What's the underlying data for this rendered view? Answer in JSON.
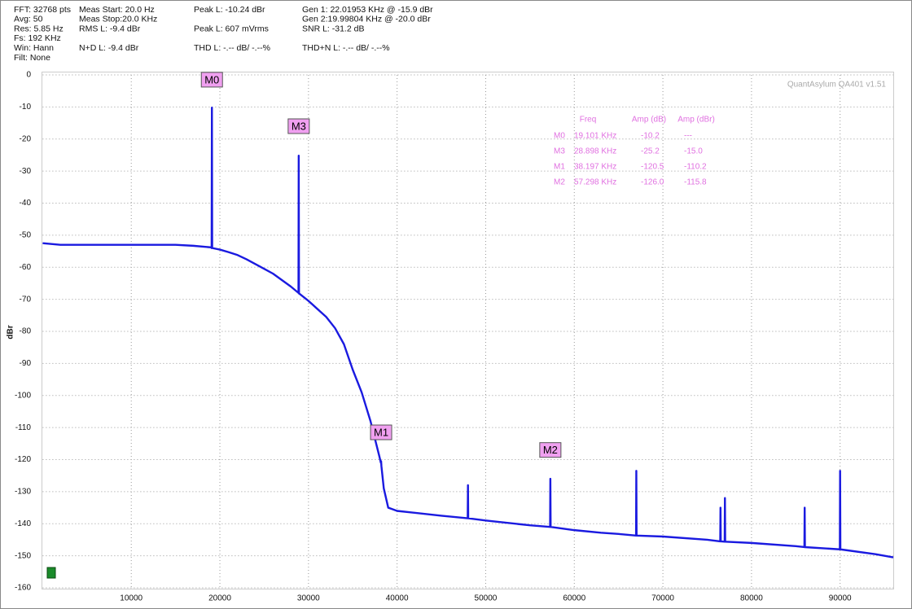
{
  "chart_data": {
    "type": "line",
    "header": [
      [
        "FFT: 32768 pts",
        "Avg: 50",
        "Res: 5.85 Hz",
        "Fs: 192 KHz",
        "Win: Hann",
        "Filt: None"
      ],
      [
        "Meas Start: 20.0 Hz",
        "Meas Stop:20.0 KHz",
        "RMS L: -9.4 dBr",
        null,
        "N+D L: -9.4 dBr"
      ],
      [
        "Peak L: -10.24 dBr",
        null,
        "Peak L: 607 mVrms",
        null,
        "THD L: -.-- dB/ -.--%"
      ],
      [
        "Gen 1: 22.01953 KHz @ -15.9  dBr",
        "Gen 2:19.99804 KHz @ -20.0  dBr",
        "SNR L: -31.2 dB",
        null,
        "THD+N L: -.-- dB/ -.--%"
      ]
    ],
    "watermark": "QuantAsylum QA401 v1.51",
    "ylabel": "dBr",
    "xlim": [
      0,
      96000
    ],
    "ylim": [
      -160,
      0
    ],
    "xticks": [
      10000,
      20000,
      30000,
      40000,
      50000,
      60000,
      70000,
      80000,
      90000
    ],
    "yticks": [
      0,
      -10,
      -20,
      -30,
      -40,
      -50,
      -60,
      -70,
      -80,
      -90,
      -100,
      -110,
      -120,
      -130,
      -140,
      -150,
      -160
    ],
    "grid": true,
    "color": "#1a1ae0",
    "x": [
      0,
      2000,
      5000,
      10000,
      15000,
      17000,
      19000,
      19070,
      19101,
      19130,
      20000,
      21000,
      22000,
      23000,
      24000,
      25000,
      26000,
      27000,
      28000,
      28870,
      28898,
      28930,
      29000,
      30000,
      31000,
      32000,
      33000,
      34000,
      35000,
      36000,
      37000,
      37500,
      38000,
      38170,
      38197,
      38230,
      38500,
      39000,
      39500,
      40000,
      45000,
      47970,
      48000,
      48030,
      50000,
      55000,
      57270,
      57298,
      57330,
      60000,
      63000,
      65000,
      66970,
      67000,
      67030,
      70000,
      75000,
      76470,
      76500,
      76530,
      76970,
      77000,
      77030,
      80000,
      85000,
      85970,
      86000,
      86030,
      89970,
      90000,
      90030,
      94000,
      96000
    ],
    "values": [
      -52.5,
      -53,
      -53,
      -53,
      -53,
      -53.3,
      -53.8,
      -54,
      -10.2,
      -54,
      -54.5,
      -55.3,
      -56.2,
      -57.5,
      -59,
      -60.5,
      -62,
      -64,
      -66,
      -68,
      -25.2,
      -68.2,
      -68.3,
      -70.5,
      -73,
      -75.5,
      -79,
      -84,
      -92,
      -99,
      -108,
      -113.5,
      -119,
      -121,
      -120.5,
      -122,
      -129,
      -135,
      -135.5,
      -136,
      -137.5,
      -138.3,
      -128,
      -138.3,
      -139,
      -140.5,
      -141,
      -126,
      -141,
      -142,
      -142.8,
      -143.2,
      -143.7,
      -123.5,
      -143.7,
      -144,
      -145,
      -145.5,
      -135,
      -145.5,
      -145.6,
      -132,
      -145.6,
      -146,
      -147,
      -147.3,
      -135,
      -147.3,
      -148,
      -123.5,
      -148,
      -149.5,
      -150.5
    ],
    "markers": [
      {
        "label": "M0",
        "x": 19101,
        "y": -1.5
      },
      {
        "label": "M3",
        "x": 28898,
        "y": -16
      },
      {
        "label": "M1",
        "x": 38197,
        "y": -111.5
      },
      {
        "label": "M2",
        "x": 57298,
        "y": -117
      }
    ],
    "marker_table": {
      "columns": [
        "Freq",
        "Amp (dB)",
        "Amp (dBr)"
      ],
      "rows": [
        [
          "M0",
          "19.101 KHz",
          "-10.2",
          "---"
        ],
        [
          "M3",
          "28.898 KHz",
          "-25.2",
          "-15.0"
        ],
        [
          "M1",
          "38.197 KHz",
          "-120.5",
          "-110.2"
        ],
        [
          "M2",
          "57.298 KHz",
          "-126.0",
          "-115.8"
        ]
      ]
    }
  }
}
